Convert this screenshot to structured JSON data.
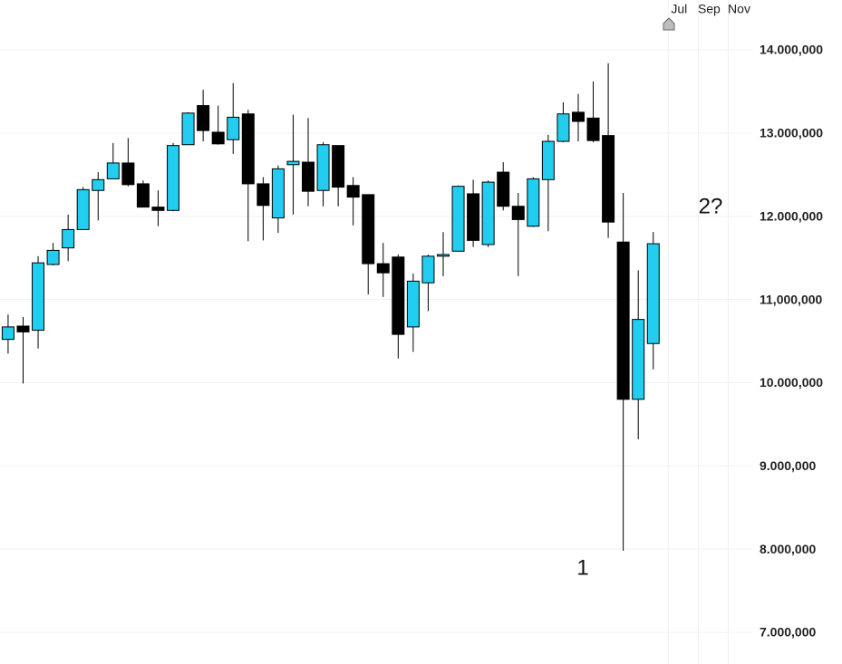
{
  "chart_data": {
    "type": "candlestick",
    "categories": [
      null,
      null,
      null,
      null,
      null,
      null,
      null,
      null,
      null,
      null,
      null,
      null,
      null,
      null,
      null,
      null,
      null,
      null,
      null,
      null,
      null,
      null,
      null,
      null,
      null,
      null,
      null,
      null,
      null,
      null,
      null,
      null,
      null,
      null,
      null,
      null,
      null,
      null,
      null,
      null,
      null,
      null,
      null,
      null
    ],
    "series": [
      {
        "up_color": "#22cdf0",
        "down_color": "#000000",
        "open": [
          10520000,
          10680000,
          10630000,
          11420000,
          11620000,
          11840000,
          12310000,
          12450000,
          12640000,
          12390000,
          12110000,
          12070000,
          12860000,
          13330000,
          13010000,
          12920000,
          13230000,
          12390000,
          11980000,
          12620000,
          12650000,
          12310000,
          12850000,
          12370000,
          12260000,
          11430000,
          11510000,
          10670000,
          11200000,
          11520000,
          11580000,
          12270000,
          11660000,
          12530000,
          12120000,
          11880000,
          12440000,
          12900000,
          13250000,
          13180000,
          12970000,
          11690000,
          9800000,
          10470000
        ],
        "high": [
          10820000,
          10790000,
          11520000,
          11680000,
          12020000,
          12350000,
          12530000,
          12880000,
          12940000,
          12430000,
          12310000,
          12880000,
          13250000,
          13520000,
          13330000,
          13600000,
          13280000,
          12470000,
          12610000,
          13220000,
          13180000,
          12890000,
          12850000,
          12470000,
          12260000,
          11680000,
          11540000,
          11310000,
          11540000,
          11810000,
          12370000,
          12440000,
          12430000,
          12650000,
          12280000,
          12470000,
          12980000,
          13370000,
          13470000,
          13620000,
          13840000,
          12280000,
          11350000,
          11810000
        ],
        "low": [
          10350000,
          9990000,
          10410000,
          11410000,
          11460000,
          11840000,
          11950000,
          12450000,
          12360000,
          12110000,
          11880000,
          12060000,
          12860000,
          12900000,
          12860000,
          12750000,
          11700000,
          11710000,
          11800000,
          12020000,
          12120000,
          12120000,
          12120000,
          11890000,
          11060000,
          11030000,
          10290000,
          10370000,
          10860000,
          11280000,
          11580000,
          11630000,
          11630000,
          12070000,
          11280000,
          11870000,
          11820000,
          12890000,
          12900000,
          12890000,
          11740000,
          7980000,
          9320000,
          10160000
        ],
        "close": [
          10670000,
          10610000,
          11440000,
          11590000,
          11840000,
          12320000,
          12440000,
          12640000,
          12380000,
          12110000,
          12070000,
          12850000,
          13240000,
          13030000,
          12870000,
          13190000,
          12390000,
          12130000,
          12570000,
          12660000,
          12300000,
          12860000,
          12350000,
          12230000,
          11430000,
          11320000,
          10580000,
          11220000,
          11520000,
          11540000,
          12360000,
          11710000,
          12410000,
          12120000,
          11960000,
          12450000,
          12900000,
          13230000,
          13140000,
          12910000,
          11930000,
          9800000,
          10760000,
          11670000
        ]
      }
    ],
    "ylim": [
      6619000,
      14599000
    ],
    "yticks": [
      {
        "value": 14000000,
        "label": "14.000,000"
      },
      {
        "value": 13000000,
        "label": "13.000,000"
      },
      {
        "value": 12000000,
        "label": "12.000,000"
      },
      {
        "value": 11000000,
        "label": "11,000,000"
      },
      {
        "value": 10000000,
        "label": "10.000,000"
      },
      {
        "value": 9000000,
        "label": "9.000,000"
      },
      {
        "value": 8000000,
        "label": "8.000,000"
      },
      {
        "value": 7000000,
        "label": "7.000,000"
      }
    ],
    "xlim": [
      -0.54,
      49.6
    ],
    "xticks": [
      {
        "value": 44,
        "label": "Jul"
      },
      {
        "value": 46,
        "label": "Sep"
      },
      {
        "value": 48,
        "label": "Nov"
      }
    ],
    "grid": true,
    "annotations": [
      "1",
      "2?"
    ]
  }
}
